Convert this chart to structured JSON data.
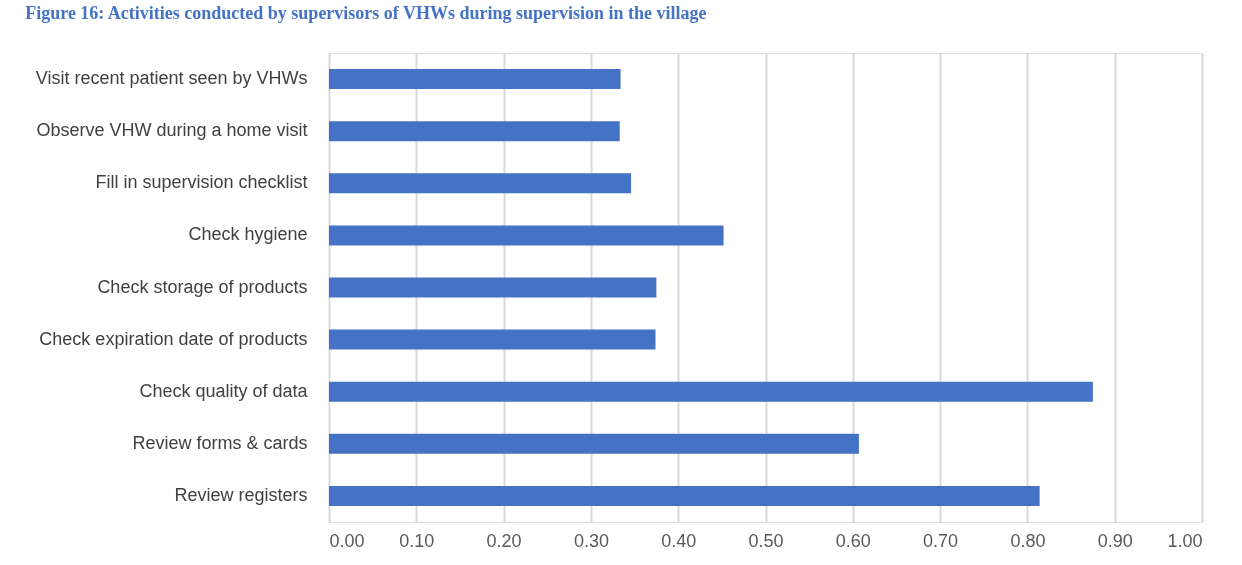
{
  "chart_data": {
    "type": "bar",
    "orientation": "horizontal",
    "title": "Figure 16: Activities conducted by supervisors of VHWs during supervision in the village",
    "categories": [
      "Visit recent patient seen by VHWs",
      "Observe VHW during a home visit",
      "Fill in supervision checklist",
      "Check hygiene",
      "Check storage of products",
      "Check expiration date of products",
      "Check quality of data",
      "Review forms & cards",
      "Review registers"
    ],
    "values": [
      0.334,
      0.333,
      0.346,
      0.452,
      0.375,
      0.374,
      0.875,
      0.607,
      0.814
    ],
    "color": "#4472c4",
    "xlim": [
      0,
      1
    ],
    "xticks": [
      {
        "value": 0,
        "label": "0.00"
      },
      {
        "value": 0.1,
        "label": "0.10"
      },
      {
        "value": 0.2,
        "label": "0.20"
      },
      {
        "value": 0.3,
        "label": "0.30"
      },
      {
        "value": 0.4,
        "label": "0.40"
      },
      {
        "value": 0.5,
        "label": "0.50"
      },
      {
        "value": 0.6,
        "label": "0.60"
      },
      {
        "value": 0.7,
        "label": "0.70"
      },
      {
        "value": 0.8,
        "label": "0.80"
      },
      {
        "value": 0.9,
        "label": "0.90"
      },
      {
        "value": 1,
        "label": "1.00"
      }
    ],
    "grid": "x"
  }
}
